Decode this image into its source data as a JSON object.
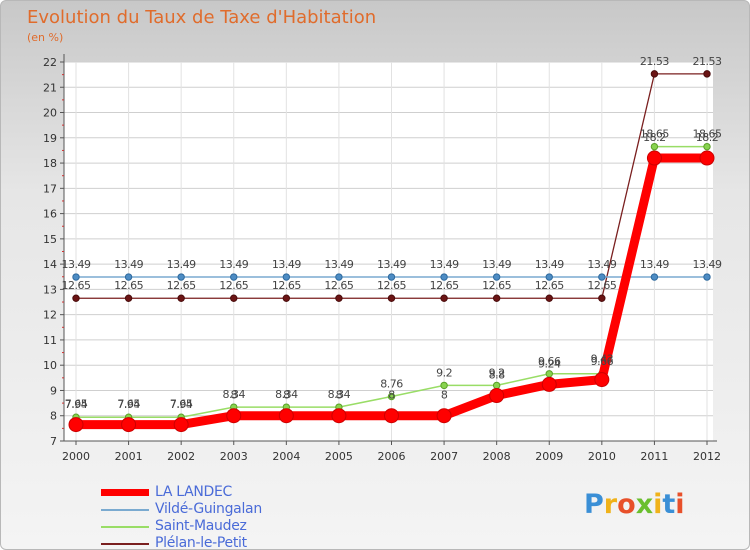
{
  "title": "Evolution du Taux de Taxe d'Habitation",
  "subtitle": "(en %)",
  "colors": {
    "la_landec": "#ff0000",
    "vilde": "#7aaad0",
    "saint": "#99dd66",
    "plelan": "#7a1f1f",
    "axis": "#555555",
    "grid": "#cfcfcf",
    "title": "#e06c2c",
    "legend_text": "#4a6bd8"
  },
  "chart_data": {
    "type": "line",
    "title": "Evolution du Taux de Taxe d'Habitation",
    "ylabel": "(en %)",
    "xlabel": "",
    "ylim": [
      7,
      22
    ],
    "y_ticks": [
      "7",
      "8",
      "9",
      "10",
      "11",
      "12",
      "13",
      "14",
      "15",
      "16",
      "17",
      "18",
      "19",
      "20",
      "21",
      "22"
    ],
    "categories": [
      "2000",
      "2001",
      "2002",
      "2003",
      "2004",
      "2005",
      "2006",
      "2007",
      "2008",
      "2009",
      "2010",
      "2011",
      "2012"
    ],
    "series": [
      {
        "name": "LA LANDEC",
        "key": "la_landec",
        "values": [
          7.65,
          7.65,
          7.65,
          8,
          8,
          8,
          8,
          8,
          8.8,
          9.24,
          9.43,
          18.2,
          18.2
        ],
        "labels": [
          "7.65",
          "7.65",
          "7.65",
          "8",
          "8",
          "8",
          "8",
          "8",
          "8.8",
          "9.24",
          "9.43",
          "18.2",
          "18.2"
        ]
      },
      {
        "name": "Vildé-Guingalan",
        "key": "vilde",
        "values": [
          13.49,
          13.49,
          13.49,
          13.49,
          13.49,
          13.49,
          13.49,
          13.49,
          13.49,
          13.49,
          13.49,
          13.49,
          13.49
        ],
        "labels": [
          "13.49",
          "13.49",
          "13.49",
          "13.49",
          "13.49",
          "13.49",
          "13.49",
          "13.49",
          "13.49",
          "13.49",
          "13.49",
          "13.49",
          "13.49"
        ]
      },
      {
        "name": "Saint-Maudez",
        "key": "saint",
        "values": [
          7.94,
          7.94,
          7.94,
          8.34,
          8.34,
          8.34,
          8.76,
          9.2,
          9.2,
          9.66,
          9.66,
          18.65,
          18.65
        ],
        "labels": [
          "7.94",
          "7.94",
          "7.94",
          "8.34",
          "8.34",
          "8.34",
          "8.76",
          "9.2",
          "9.2",
          "9.66",
          "9.66",
          "18.65",
          "18.65"
        ]
      },
      {
        "name": "Plélan-le-Petit",
        "key": "plelan",
        "values": [
          12.65,
          12.65,
          12.65,
          12.65,
          12.65,
          12.65,
          12.65,
          12.65,
          12.65,
          12.65,
          12.65,
          21.53,
          21.53
        ],
        "labels": [
          "12.65",
          "12.65",
          "12.65",
          "12.65",
          "12.65",
          "12.65",
          "12.65",
          "12.65",
          "12.65",
          "12.65",
          "12.65",
          "21.53",
          "21.53"
        ]
      }
    ]
  },
  "legend": [
    {
      "label": "LA LANDEC",
      "key": "la_landec"
    },
    {
      "label": "Vildé-Guingalan",
      "key": "vilde"
    },
    {
      "label": "Saint-Maudez",
      "key": "saint"
    },
    {
      "label": "Plélan-le-Petit",
      "key": "plelan"
    }
  ],
  "logo": {
    "letters": [
      "P",
      "r",
      "o",
      "x",
      "i",
      "t",
      "i"
    ],
    "colors": [
      "#3a8fd6",
      "#f0b21a",
      "#e8502a",
      "#6abf2e",
      "#f0b21a",
      "#3a8fd6",
      "#e8502a"
    ]
  }
}
